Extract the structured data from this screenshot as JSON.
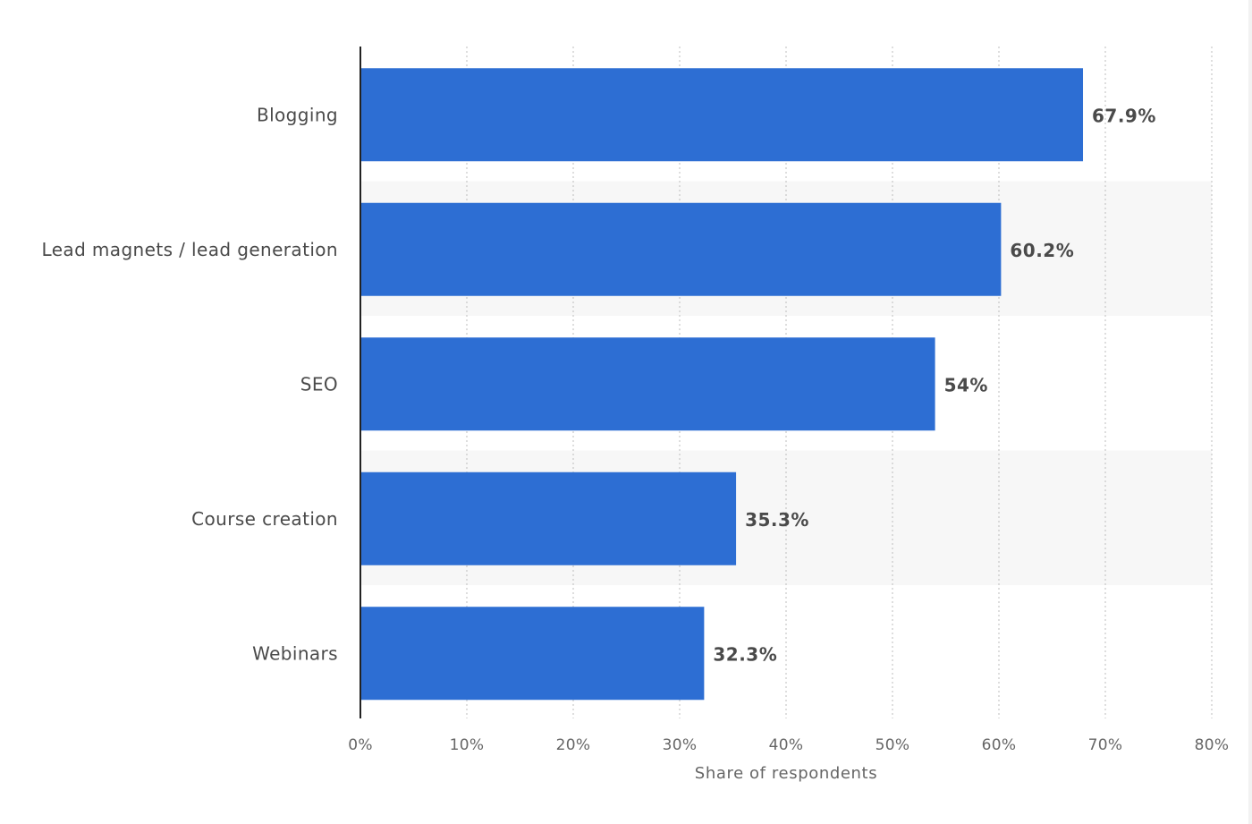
{
  "chart_data": {
    "type": "bar",
    "orientation": "horizontal",
    "categories": [
      "Blogging",
      "Lead magnets / lead generation",
      "SEO",
      "Course creation",
      "Webinars"
    ],
    "values": [
      67.9,
      60.2,
      54,
      35.3,
      32.3
    ],
    "value_labels": [
      "67.9%",
      "60.2%",
      "54%",
      "35.3%",
      "32.3%"
    ],
    "xlabel": "Share of respondents",
    "xlim": [
      0,
      80
    ],
    "xticks": [
      0,
      10,
      20,
      30,
      40,
      50,
      60,
      70,
      80
    ],
    "xtick_labels": [
      "0%",
      "10%",
      "20%",
      "30%",
      "40%",
      "50%",
      "60%",
      "70%",
      "80%"
    ],
    "grid": "vertical-dotted",
    "colors": {
      "bar": "#2d6ed3",
      "band": "#f7f7f7",
      "grid": "#bdbdbd",
      "axis": "#222222"
    }
  }
}
